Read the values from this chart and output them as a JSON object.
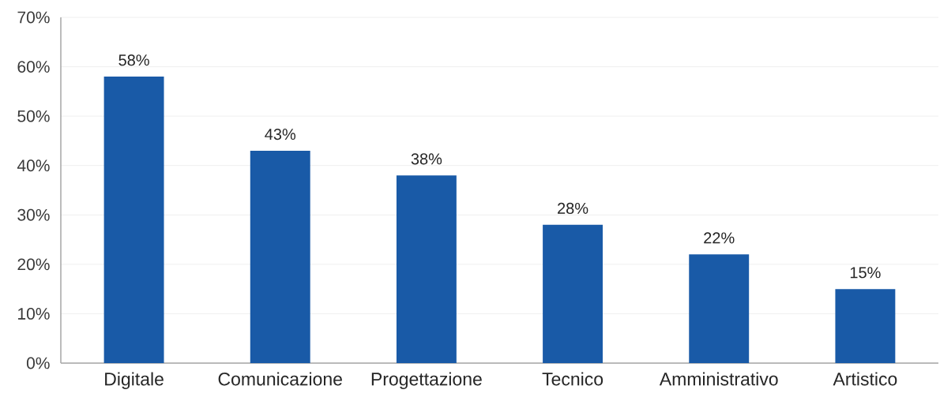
{
  "chart_data": {
    "type": "bar",
    "categories": [
      "Digitale",
      "Comunicazione",
      "Progettazione",
      "Tecnico",
      "Amministrativo",
      "Artistico"
    ],
    "values": [
      58,
      43,
      38,
      28,
      22,
      15
    ],
    "value_labels": [
      "58%",
      "43%",
      "38%",
      "28%",
      "22%",
      "15%"
    ],
    "color": "#195aa7",
    "ylim": [
      0,
      70
    ],
    "yticks": [
      {
        "value": 0,
        "label": "0%"
      },
      {
        "value": 10,
        "label": "10%"
      },
      {
        "value": 20,
        "label": "20%"
      },
      {
        "value": 30,
        "label": "30%"
      },
      {
        "value": 40,
        "label": "40%"
      },
      {
        "value": 50,
        "label": "50%"
      },
      {
        "value": 60,
        "label": "60%"
      },
      {
        "value": 70,
        "label": "70%"
      }
    ],
    "grid": "y"
  }
}
